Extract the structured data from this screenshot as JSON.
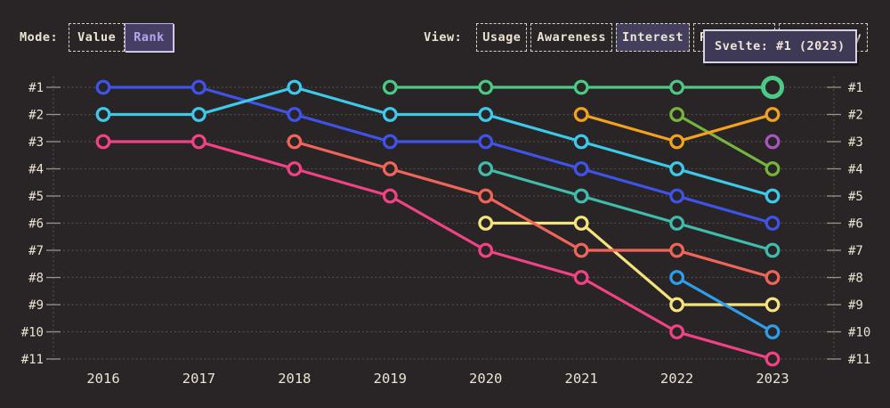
{
  "theme": {
    "background": "#292425",
    "axis_text": "#ebe3d3",
    "grid_line": "#5a5450",
    "tick_mark": "#9a9288",
    "selected_mode_bg": "#473f63",
    "selected_mode_text": "#b7a6f0",
    "selected_view_bg": "#453f5e",
    "button_border": "#d9d1c2",
    "tooltip_bg": "#3e3954",
    "tooltip_border": "#d8d1e6"
  },
  "controls": {
    "mode": {
      "label": "Mode:",
      "options": [
        {
          "label": "Value",
          "selected": false
        },
        {
          "label": "Rank",
          "selected": true
        }
      ]
    },
    "view": {
      "label": "View:",
      "options": [
        {
          "label": "Usage",
          "selected": false
        },
        {
          "label": "Awareness",
          "selected": false
        },
        {
          "label": "Interest",
          "selected": true
        },
        {
          "label": "Retention",
          "selected": false
        },
        {
          "label": "Positivity",
          "selected": false
        }
      ]
    }
  },
  "tooltip": {
    "text": "Svelte: #1 (2023)"
  },
  "chart_data": {
    "type": "line",
    "subtype": "bump-rank-chart",
    "x": [
      2016,
      2017,
      2018,
      2019,
      2020,
      2021,
      2022,
      2023
    ],
    "rank_labels": [
      "#1",
      "#2",
      "#3",
      "#4",
      "#5",
      "#6",
      "#7",
      "#8",
      "#9",
      "#10",
      "#11"
    ],
    "ylim": [
      1,
      11
    ],
    "y_axis_mirrored": true,
    "grid": "dotted-horizontal",
    "legend": "none",
    "series": [
      {
        "name": "indigo",
        "color": "#4053e8",
        "ranks": [
          1,
          1,
          2,
          3,
          3,
          4,
          5,
          6
        ]
      },
      {
        "name": "cyan",
        "color": "#3ec9ea",
        "ranks": [
          2,
          2,
          1,
          2,
          2,
          3,
          4,
          5
        ]
      },
      {
        "name": "pink",
        "color": "#f04284",
        "ranks": [
          3,
          3,
          4,
          5,
          7,
          8,
          10,
          11
        ]
      },
      {
        "name": "teal",
        "color": "#3fbcab",
        "ranks": [
          null,
          null,
          null,
          null,
          4,
          5,
          6,
          7
        ]
      },
      {
        "name": "yellow",
        "color": "#f4e47e",
        "ranks": [
          null,
          null,
          null,
          null,
          6,
          6,
          9,
          9
        ]
      },
      {
        "name": "salmon",
        "color": "#f0655a",
        "ranks": [
          null,
          null,
          3,
          4,
          5,
          7,
          7,
          8
        ]
      },
      {
        "name": "azure",
        "color": "#2f9ded",
        "ranks": [
          null,
          null,
          null,
          null,
          null,
          null,
          8,
          10
        ]
      },
      {
        "name": "olive",
        "color": "#76b43e",
        "ranks": [
          null,
          null,
          null,
          null,
          null,
          null,
          2,
          4
        ]
      },
      {
        "name": "orange",
        "color": "#f2a21f",
        "ranks": [
          null,
          null,
          null,
          null,
          null,
          2,
          3,
          2
        ]
      },
      {
        "name": "purple",
        "color": "#a855bf",
        "ranks": [
          null,
          null,
          null,
          null,
          null,
          null,
          null,
          3
        ]
      },
      {
        "name": "Svelte",
        "color": "#4cc985",
        "ranks": [
          null,
          null,
          null,
          1,
          1,
          1,
          1,
          1
        ]
      }
    ],
    "highlight": {
      "series": "Svelte",
      "year": 2023,
      "rank": 1
    }
  }
}
